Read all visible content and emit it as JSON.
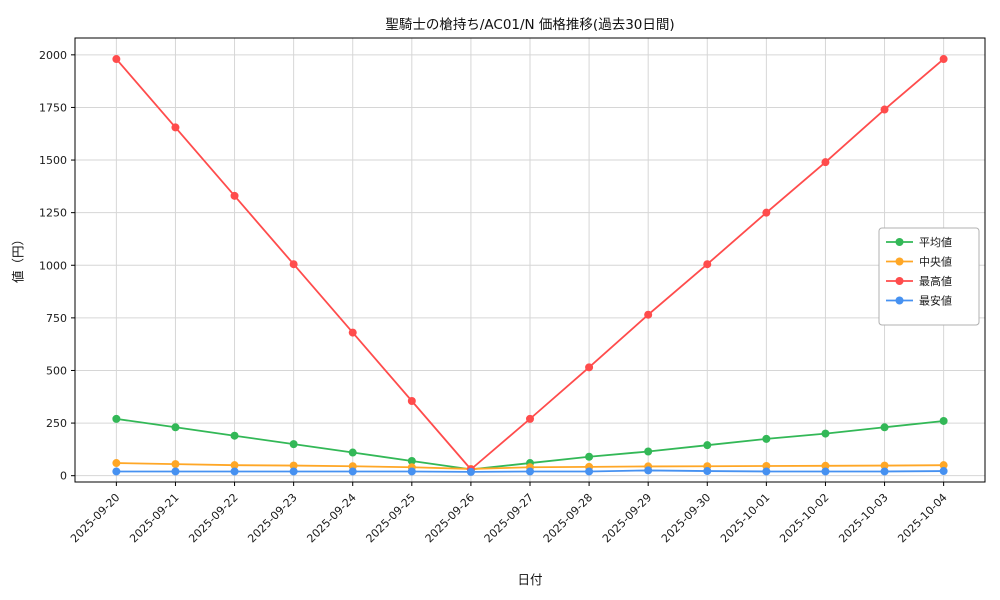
{
  "window": {
    "background": "#ffffff"
  },
  "chart_data": {
    "type": "line",
    "title": "聖騎士の槍持ち/AC01/N 価格推移(過去30日間)",
    "xlabel": "日付",
    "ylabel": "値（円）",
    "x": [
      "2025-09-20",
      "2025-09-21",
      "2025-09-22",
      "2025-09-23",
      "2025-09-24",
      "2025-09-25",
      "2025-09-26",
      "2025-09-27",
      "2025-09-28",
      "2025-09-29",
      "2025-09-30",
      "2025-10-01",
      "2025-10-02",
      "2025-10-03",
      "2025-10-04"
    ],
    "ylim": [
      -30,
      2080
    ],
    "yticks": [
      0,
      250,
      500,
      750,
      1000,
      1250,
      1500,
      1750,
      2000
    ],
    "grid": true,
    "legend_position": "center-right",
    "series": [
      {
        "name": "平均値",
        "color": "#33b857",
        "values": [
          270,
          230,
          190,
          150,
          110,
          70,
          30,
          60,
          90,
          115,
          145,
          175,
          200,
          230,
          260
        ]
      },
      {
        "name": "中央値",
        "color": "#ffa726",
        "values": [
          60,
          55,
          50,
          48,
          45,
          40,
          32,
          40,
          42,
          44,
          45,
          46,
          47,
          48,
          50
        ]
      },
      {
        "name": "最高値",
        "color": "#ff4c4c",
        "values": [
          1980,
          1655,
          1330,
          1005,
          680,
          355,
          30,
          270,
          515,
          765,
          1005,
          1250,
          1490,
          1740,
          1980
        ]
      },
      {
        "name": "最安値",
        "color": "#4691f1",
        "values": [
          20,
          20,
          20,
          20,
          20,
          20,
          18,
          20,
          20,
          25,
          22,
          20,
          20,
          20,
          22
        ]
      }
    ]
  }
}
